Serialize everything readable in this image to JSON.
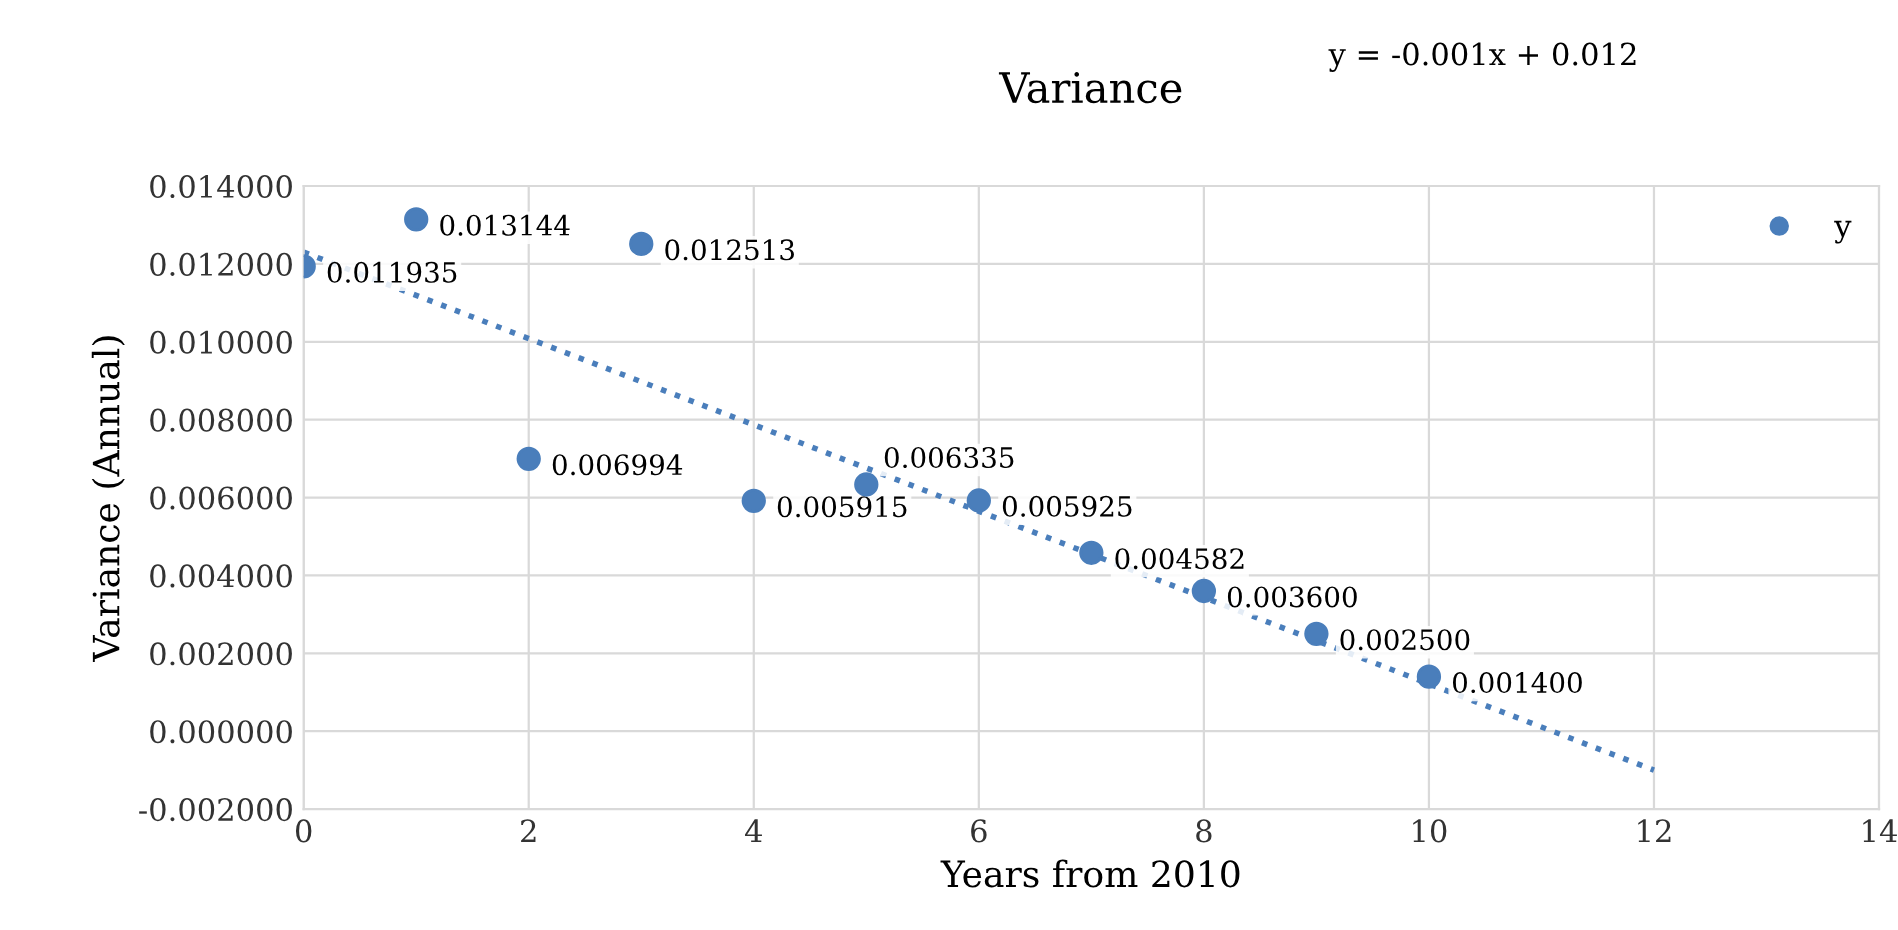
{
  "chart_data": {
    "type": "scatter",
    "title": "Variance",
    "xlabel": "Years from 2010",
    "ylabel": "Variance (Annual)",
    "annotations": [
      "y = -0.001x + 0.012"
    ],
    "series": [
      {
        "name": "y",
        "color": "#4a7ebb",
        "x": [
          0,
          1,
          2,
          3,
          4,
          5,
          6,
          7,
          8,
          9,
          10
        ],
        "values": [
          0.011935,
          0.013144,
          0.006994,
          0.012513,
          0.005915,
          0.006335,
          0.005925,
          0.004582,
          0.0036,
          0.0025,
          0.0014
        ],
        "value_labels": [
          "0.011935",
          "0.013144",
          "0.006994",
          "0.012513",
          "0.005915",
          "0.006335",
          "0.005925",
          "0.004582",
          "0.003600",
          "0.002500",
          "0.001400"
        ],
        "marker": "circle"
      },
      {
        "color": "#4a7ebb",
        "type": "line",
        "x": [
          0,
          12
        ],
        "values": [
          0.0123,
          -0.001
        ],
        "line_style": "dotted",
        "marker": "none"
      }
    ],
    "xlim": [
      0,
      14
    ],
    "xticks": [
      0,
      2,
      4,
      6,
      8,
      10,
      12,
      14
    ],
    "ylim": [
      -0.002,
      0.014
    ],
    "yticks": [
      {
        "value": -0.002,
        "label": "-0.002000"
      },
      {
        "value": 0,
        "label": "0.000000"
      },
      {
        "value": 0.002,
        "label": "0.002000"
      },
      {
        "value": 0.004,
        "label": "0.004000"
      },
      {
        "value": 0.006,
        "label": "0.006000"
      },
      {
        "value": 0.008,
        "label": "0.008000"
      },
      {
        "value": 0.01,
        "label": "0.010000"
      },
      {
        "value": 0.012,
        "label": "0.012000"
      },
      {
        "value": 0.014,
        "label": "0.014000"
      }
    ],
    "grid": true,
    "legend": "top right"
  }
}
